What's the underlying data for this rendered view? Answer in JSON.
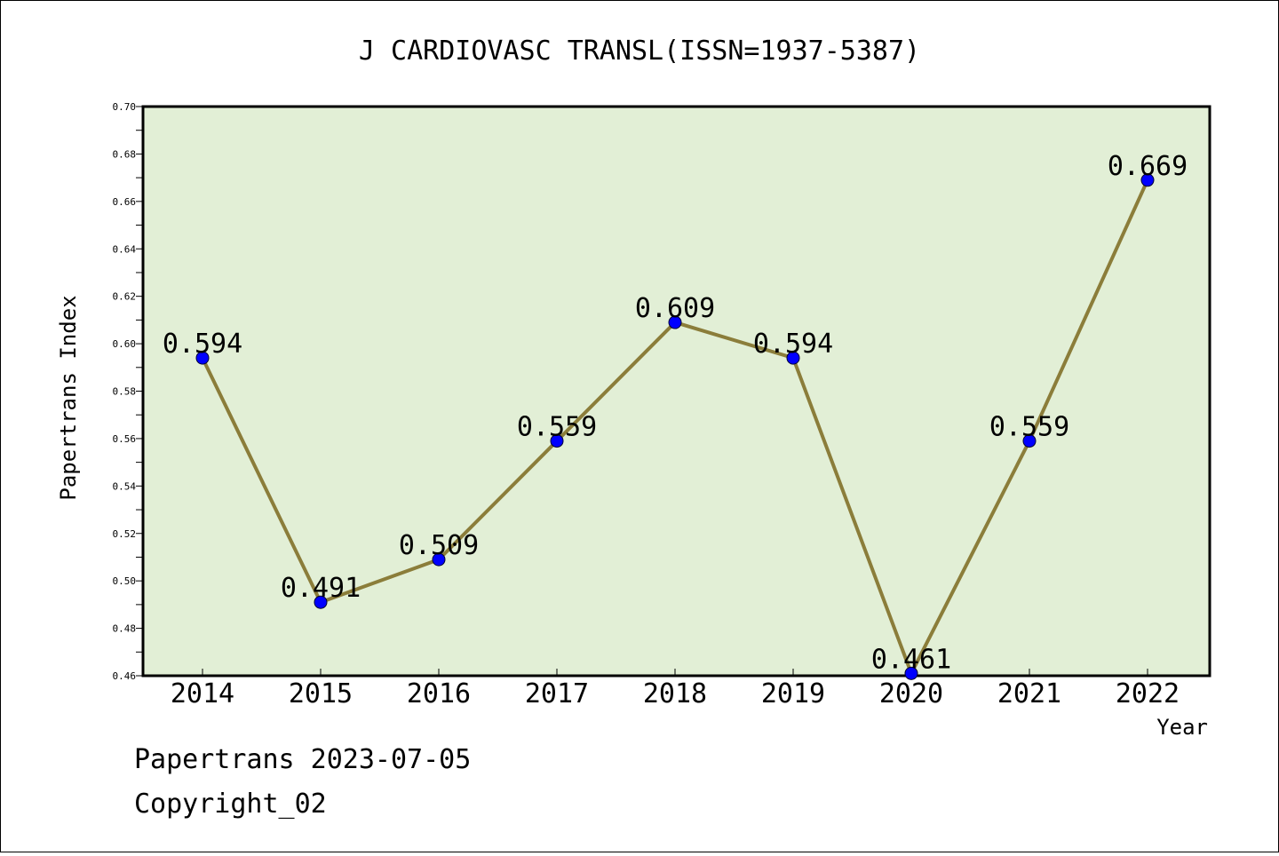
{
  "chart_data": {
    "type": "line",
    "title": "J CARDIOVASC TRANSL(ISSN=1937-5387)",
    "xlabel": "Year",
    "ylabel": "Papertrans Index",
    "categories": [
      "2014",
      "2015",
      "2016",
      "2017",
      "2018",
      "2019",
      "2020",
      "2021",
      "2022"
    ],
    "values": [
      0.594,
      0.491,
      0.509,
      0.559,
      0.609,
      0.594,
      0.461,
      0.559,
      0.669
    ],
    "data_labels": [
      "0.594",
      "0.491",
      "0.509",
      "0.559",
      "0.609",
      "0.594",
      "0.461",
      "0.559",
      "0.669"
    ],
    "ylim": [
      0.46,
      0.7
    ],
    "yticks": [
      "0.46",
      "0.48",
      "0.50",
      "0.52",
      "0.54",
      "0.56",
      "0.58",
      "0.60",
      "0.62",
      "0.64",
      "0.66",
      "0.68",
      "0.70"
    ],
    "grid": false,
    "colors": {
      "plot_bg": "#e2efd6",
      "line": "#8b7d3a",
      "marker": "#0000ff"
    }
  },
  "footer": {
    "line1": "Papertrans 2023-07-05",
    "line2": "Copyright_02"
  }
}
